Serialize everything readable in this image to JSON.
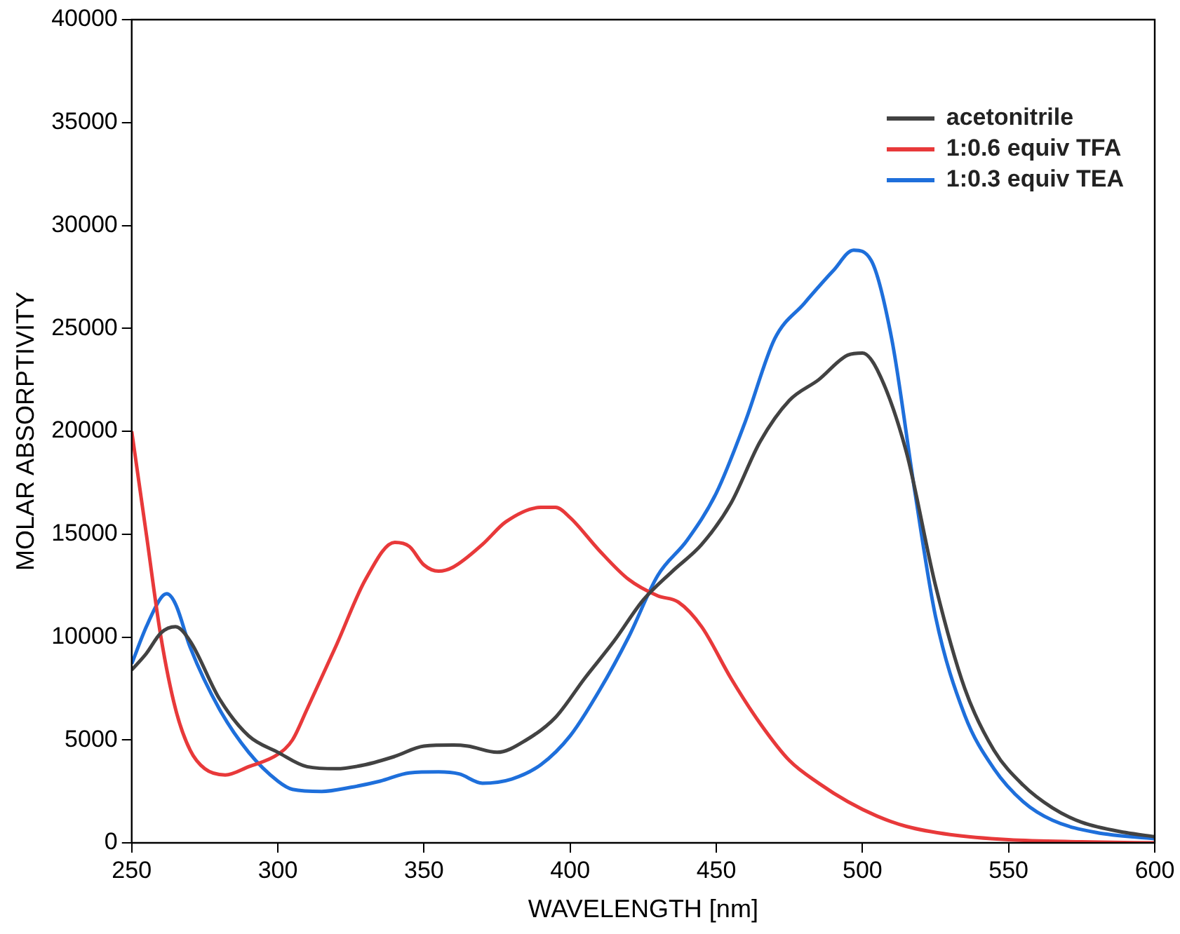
{
  "chart_data": {
    "type": "line",
    "xlabel": "WAVELENGTH [nm]",
    "ylabel": "MOLAR ABSORPTIVITY",
    "xlim": [
      250,
      600
    ],
    "xticks": [
      250,
      300,
      350,
      400,
      450,
      500,
      550,
      600
    ],
    "ylim": [
      0,
      40000
    ],
    "yticks": [
      0,
      5000,
      10000,
      15000,
      20000,
      25000,
      30000,
      35000,
      40000
    ],
    "legend": "top right",
    "marker": "none",
    "line_style": "solid",
    "series": [
      {
        "name": "acetonitrile",
        "color": "#424242",
        "x": [
          250,
          255,
          260,
          265,
          270,
          280,
          290,
          300,
          310,
          320,
          330,
          340,
          350,
          360,
          365,
          375,
          385,
          395,
          405,
          415,
          425,
          435,
          445,
          455,
          465,
          475,
          485,
          495,
          500,
          505,
          515,
          525,
          535,
          545,
          555,
          565,
          575,
          590,
          600
        ],
        "values": [
          8400,
          9200,
          10200,
          10500,
          9800,
          7000,
          5200,
          4400,
          3700,
          3600,
          3800,
          4200,
          4700,
          4750,
          4700,
          4400,
          5000,
          6100,
          8000,
          9800,
          11800,
          13200,
          14500,
          16500,
          19500,
          21500,
          22500,
          23700,
          23800,
          23000,
          19000,
          12500,
          7500,
          4500,
          2800,
          1700,
          1000,
          500,
          300
        ]
      },
      {
        "name": "1:0.6 equiv TFA",
        "color": "#e8393a",
        "x": [
          250,
          255,
          260,
          265,
          270,
          275,
          282,
          290,
          300,
          305,
          310,
          320,
          330,
          340,
          345,
          350,
          355,
          360,
          370,
          378,
          390,
          395,
          400,
          410,
          420,
          430,
          437,
          445,
          455,
          465,
          475,
          485,
          495,
          505,
          515,
          530,
          550,
          575,
          600
        ],
        "values": [
          20000,
          15000,
          10000,
          6500,
          4500,
          3600,
          3300,
          3700,
          4300,
          5000,
          6500,
          9600,
          12800,
          14600,
          14400,
          13500,
          13200,
          13400,
          14500,
          15600,
          16300,
          16300,
          15800,
          14200,
          12800,
          12000,
          11700,
          10500,
          8000,
          5800,
          4000,
          2900,
          2000,
          1300,
          800,
          400,
          150,
          50,
          0
        ]
      },
      {
        "name": "1:0.3 equiv TEA",
        "color": "#1e6fdb",
        "x": [
          250,
          255,
          260,
          262,
          265,
          270,
          280,
          290,
          300,
          305,
          315,
          325,
          335,
          345,
          355,
          362,
          370,
          380,
          390,
          400,
          410,
          420,
          430,
          440,
          450,
          460,
          470,
          480,
          490,
          497,
          503,
          510,
          518,
          525,
          535,
          545,
          555,
          565,
          580,
          600
        ],
        "values": [
          8700,
          10500,
          11900,
          12100,
          11600,
          9500,
          6500,
          4400,
          3000,
          2600,
          2500,
          2700,
          3000,
          3400,
          3450,
          3350,
          2900,
          3100,
          3800,
          5200,
          7400,
          10000,
          13000,
          14700,
          17000,
          20500,
          24500,
          26200,
          27800,
          28800,
          28300,
          24500,
          17000,
          11000,
          6200,
          3600,
          2000,
          1100,
          500,
          200
        ]
      }
    ]
  }
}
